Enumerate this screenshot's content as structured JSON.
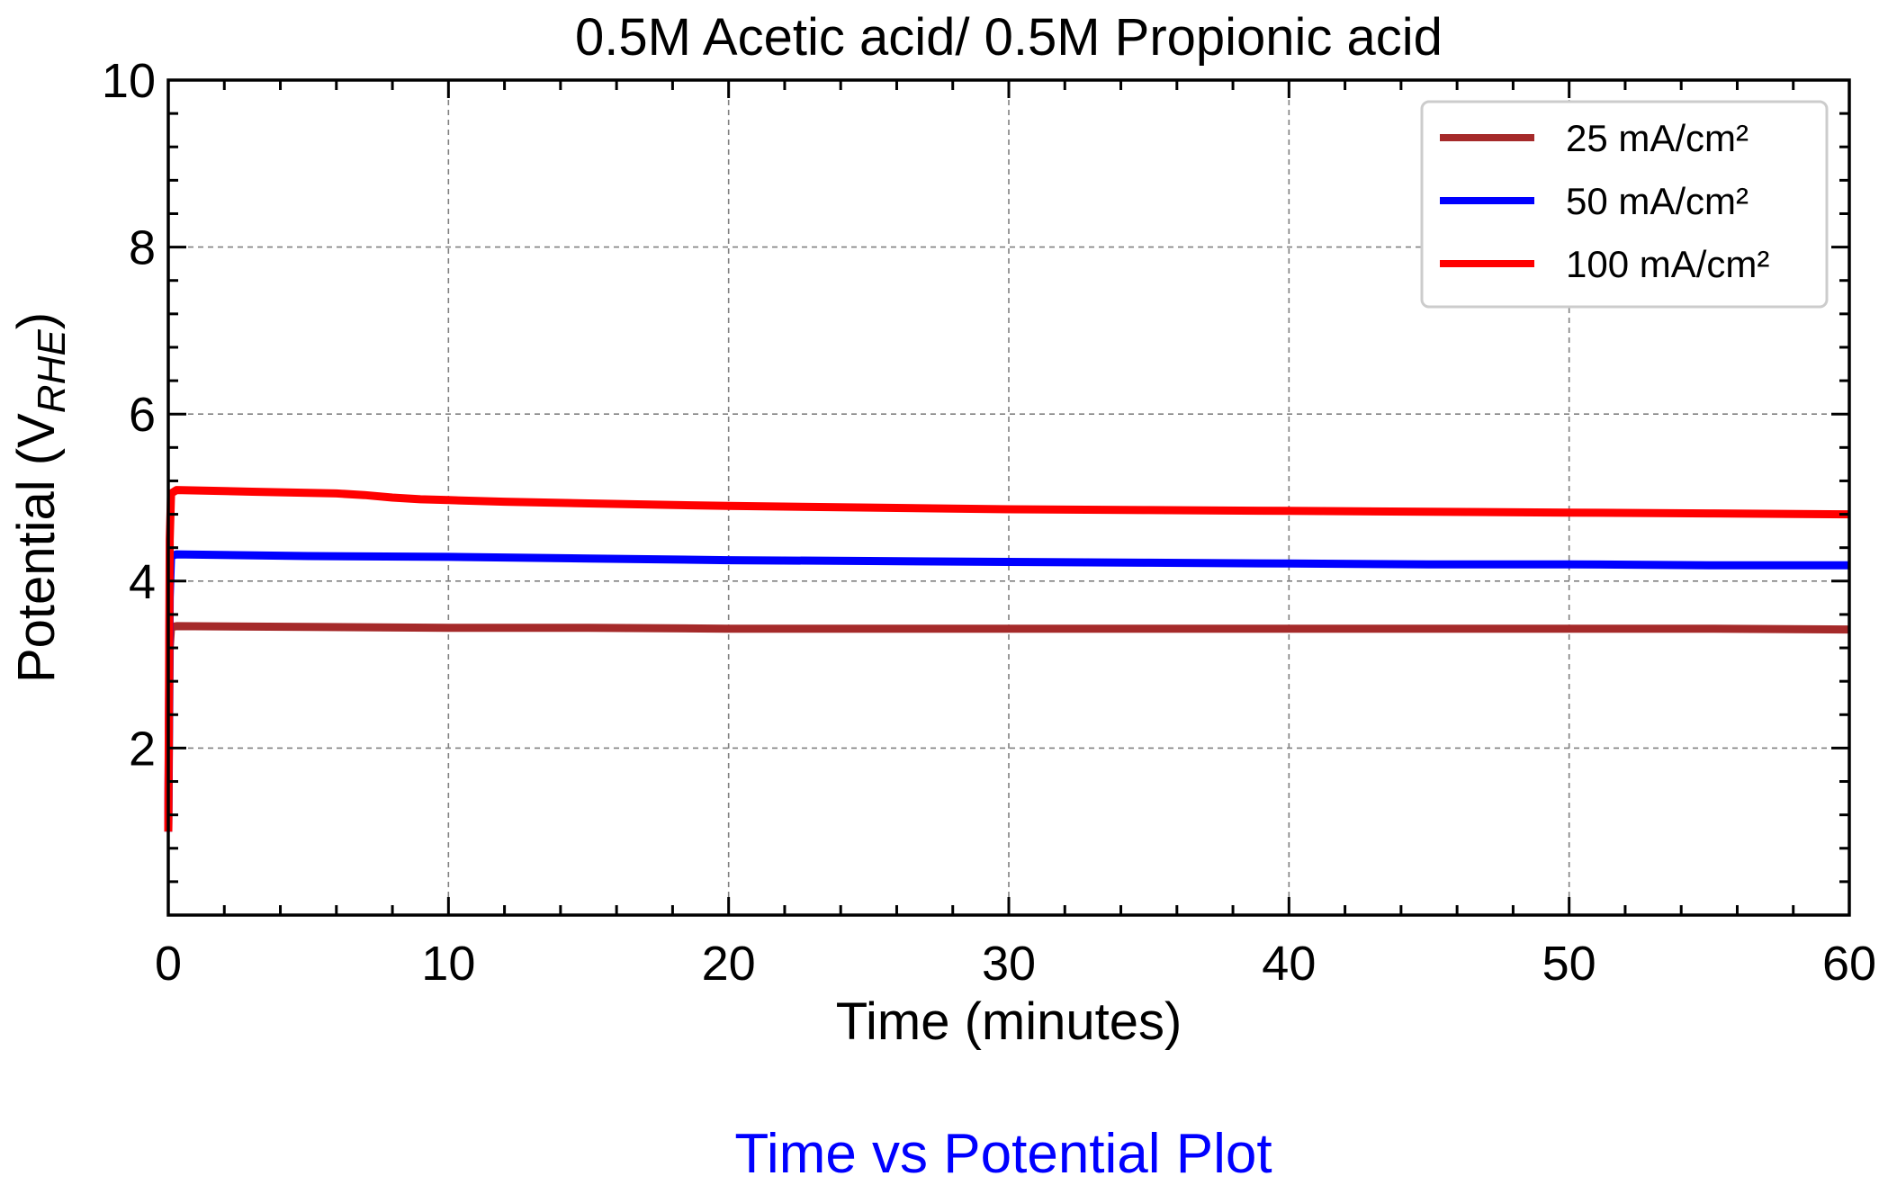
{
  "chart_data": {
    "type": "line",
    "title": "0.5M Acetic acid/ 0.5M Propionic acid",
    "xlabel": "Time (minutes)",
    "ylabel_main": "Potential (V",
    "ylabel_sub": "RHE",
    "ylabel_close": ")",
    "xlim": [
      0,
      60
    ],
    "ylim": [
      0,
      10
    ],
    "xticks": [
      0,
      10,
      20,
      30,
      40,
      50,
      60
    ],
    "yticks": [
      2,
      4,
      6,
      8,
      10
    ],
    "grid": true,
    "legend_position": "top-right",
    "series": [
      {
        "name": "25 mA/cm²",
        "color": "#a52a2a",
        "x": [
          0,
          0.05,
          0.1,
          0.3,
          5,
          10,
          15,
          20,
          25,
          30,
          35,
          40,
          45,
          50,
          55,
          60
        ],
        "y": [
          1.0,
          3.2,
          3.45,
          3.46,
          3.45,
          3.44,
          3.44,
          3.43,
          3.43,
          3.43,
          3.43,
          3.43,
          3.43,
          3.43,
          3.43,
          3.42
        ]
      },
      {
        "name": "50 mA/cm²",
        "color": "#0000ff",
        "x": [
          0,
          0.05,
          0.1,
          0.3,
          5,
          10,
          15,
          20,
          25,
          30,
          35,
          40,
          45,
          50,
          55,
          60
        ],
        "y": [
          1.0,
          3.8,
          4.3,
          4.32,
          4.3,
          4.29,
          4.27,
          4.25,
          4.24,
          4.23,
          4.22,
          4.21,
          4.2,
          4.2,
          4.19,
          4.19
        ]
      },
      {
        "name": "100 mA/cm²",
        "color": "#ff0000",
        "x": [
          0,
          0.05,
          0.1,
          0.3,
          3,
          6,
          7,
          8,
          9,
          10,
          12,
          15,
          20,
          25,
          30,
          35,
          40,
          45,
          50,
          55,
          60
        ],
        "y": [
          1.0,
          4.5,
          5.05,
          5.09,
          5.07,
          5.05,
          5.03,
          5.0,
          4.98,
          4.97,
          4.95,
          4.93,
          4.9,
          4.88,
          4.86,
          4.85,
          4.84,
          4.83,
          4.82,
          4.81,
          4.8
        ]
      }
    ]
  },
  "caption": {
    "text": "Time vs Potential Plot",
    "color": "#0000ff"
  }
}
